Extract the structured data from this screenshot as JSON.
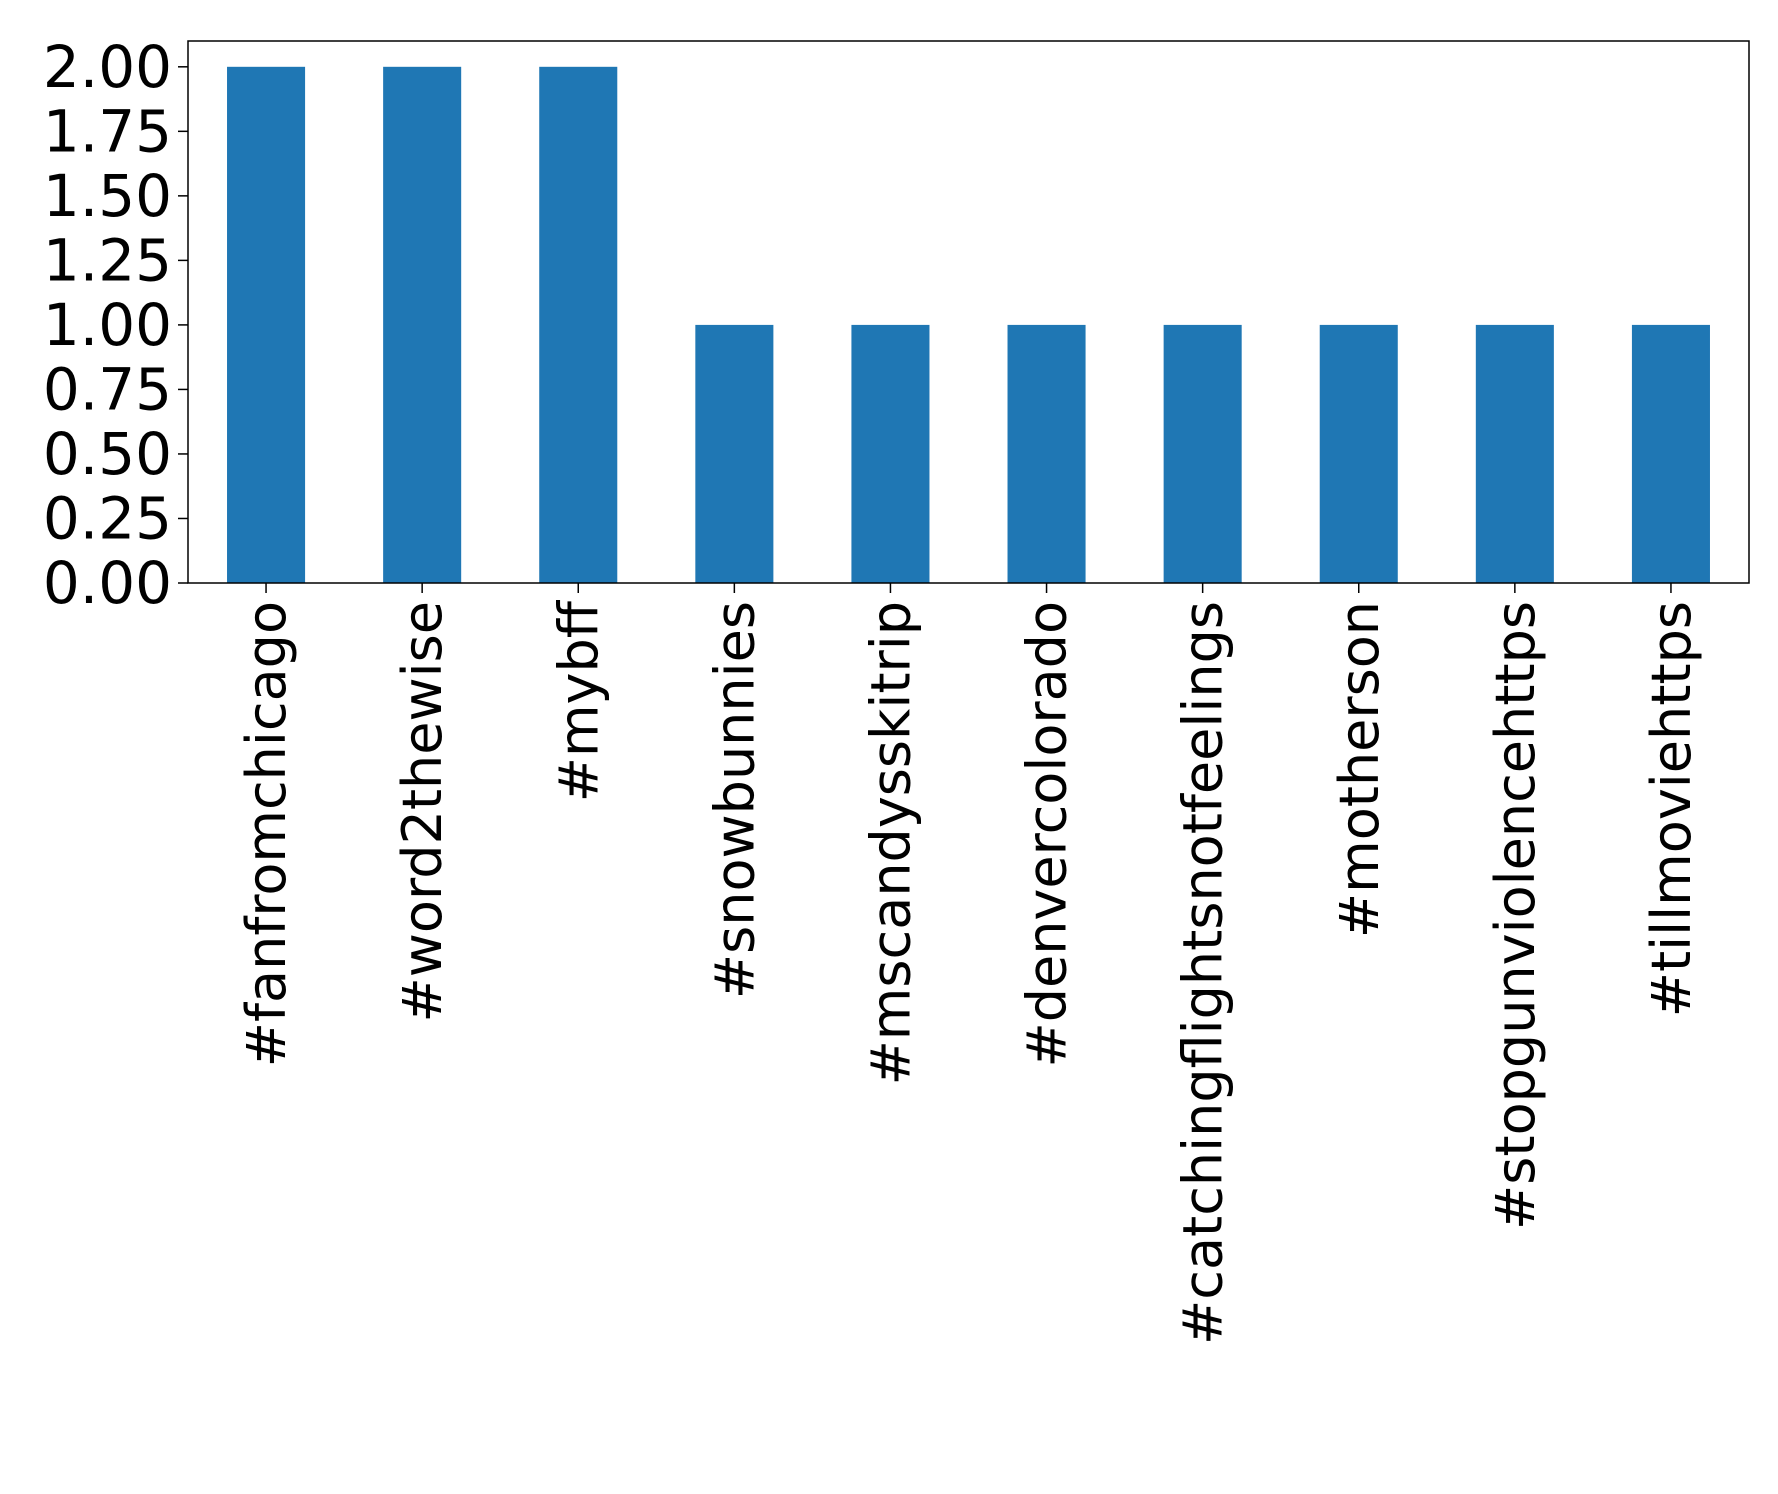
{
  "chart_data": {
    "type": "bar",
    "title": "",
    "xlabel": "",
    "ylabel": "",
    "categories": [
      "#fanfromchicago",
      "#word2thewise",
      "#mybff",
      "#snowbunnies",
      "#mscandysskitrip",
      "#denvercolorado",
      "#catchingflightsnotfeelings",
      "#motherson",
      "#stopgunviolencehttps",
      "#tillmoviehttps"
    ],
    "values": [
      2,
      2,
      2,
      1,
      1,
      1,
      1,
      1,
      1,
      1
    ],
    "ylim": [
      0,
      2.1
    ],
    "yticks": [
      "0.00",
      "0.25",
      "0.50",
      "0.75",
      "1.00",
      "1.25",
      "1.50",
      "1.75",
      "2.00"
    ],
    "grid": false,
    "legend": "none",
    "colors": {
      "bar": "#1f77b4",
      "axis": "#000000",
      "background": "#ffffff"
    }
  }
}
